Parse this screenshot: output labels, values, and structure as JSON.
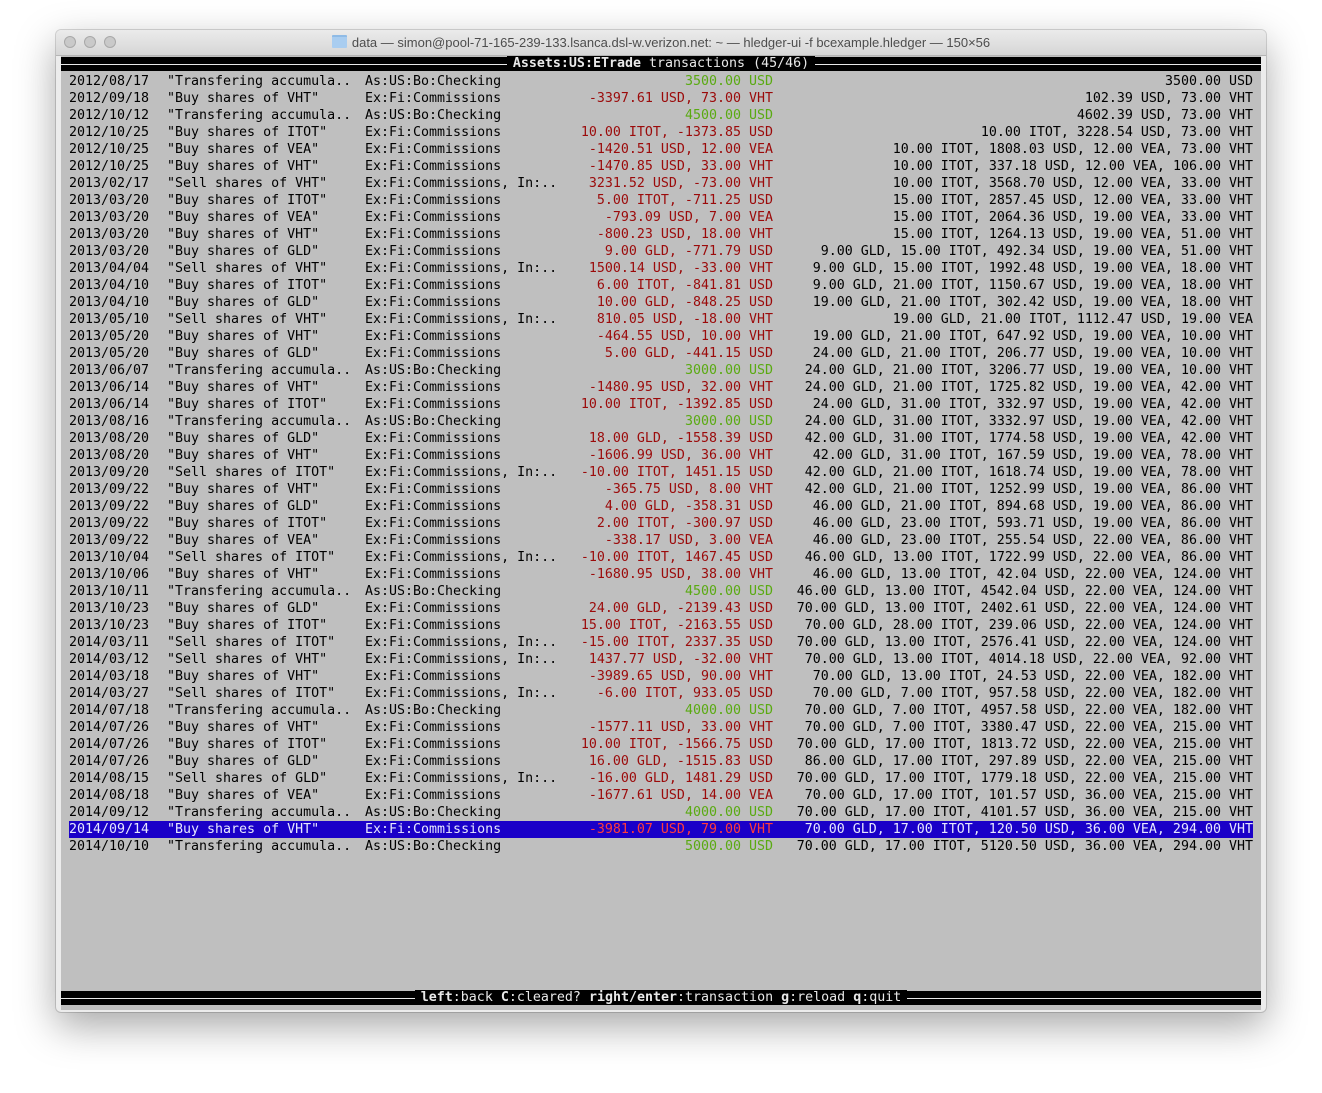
{
  "window": {
    "title": "data — simon@pool-71-165-239-133.lsanca.dsl-w.verizon.net: ~ — hledger-ui -f bcexample.hledger — 150×56"
  },
  "header": {
    "account": "Assets:US:ETrade",
    "suffix": " transactions (45/46)"
  },
  "colors": {
    "terminal_bg": "#bfbfbf",
    "negative_amount": "#9b0a0a",
    "positive_amount": "#5aaa12",
    "selection_bg": "#1a00c8"
  },
  "selected_index": 44,
  "rows": [
    {
      "date": "2012/08/17",
      "desc": "\"Transfering accumula..",
      "acct": "As:US:Bo:Checking",
      "amt": "3500.00 USD",
      "sign": "pos",
      "bal": "3500.00 USD"
    },
    {
      "date": "2012/09/18",
      "desc": "\"Buy shares of VHT\"",
      "acct": "Ex:Fi:Commissions",
      "amt": "-3397.61 USD, 73.00 VHT",
      "sign": "neg",
      "bal": "102.39 USD, 73.00 VHT"
    },
    {
      "date": "2012/10/12",
      "desc": "\"Transfering accumula..",
      "acct": "As:US:Bo:Checking",
      "amt": "4500.00 USD",
      "sign": "pos",
      "bal": "4602.39 USD, 73.00 VHT"
    },
    {
      "date": "2012/10/25",
      "desc": "\"Buy shares of ITOT\"",
      "acct": "Ex:Fi:Commissions",
      "amt": "10.00 ITOT, -1373.85 USD",
      "sign": "neg",
      "bal": "10.00 ITOT, 3228.54 USD, 73.00 VHT"
    },
    {
      "date": "2012/10/25",
      "desc": "\"Buy shares of VEA\"",
      "acct": "Ex:Fi:Commissions",
      "amt": "-1420.51 USD, 12.00 VEA",
      "sign": "neg",
      "bal": "10.00 ITOT, 1808.03 USD, 12.00 VEA, 73.00 VHT"
    },
    {
      "date": "2012/10/25",
      "desc": "\"Buy shares of VHT\"",
      "acct": "Ex:Fi:Commissions",
      "amt": "-1470.85 USD, 33.00 VHT",
      "sign": "neg",
      "bal": "10.00 ITOT, 337.18 USD, 12.00 VEA, 106.00 VHT"
    },
    {
      "date": "2013/02/17",
      "desc": "\"Sell shares of VHT\"",
      "acct": "Ex:Fi:Commissions, In:..",
      "amt": "3231.52 USD, -73.00 VHT",
      "sign": "neg",
      "bal": "10.00 ITOT, 3568.70 USD, 12.00 VEA, 33.00 VHT"
    },
    {
      "date": "2013/03/20",
      "desc": "\"Buy shares of ITOT\"",
      "acct": "Ex:Fi:Commissions",
      "amt": "5.00 ITOT, -711.25 USD",
      "sign": "neg",
      "bal": "15.00 ITOT, 2857.45 USD, 12.00 VEA, 33.00 VHT"
    },
    {
      "date": "2013/03/20",
      "desc": "\"Buy shares of VEA\"",
      "acct": "Ex:Fi:Commissions",
      "amt": "-793.09 USD, 7.00 VEA",
      "sign": "neg",
      "bal": "15.00 ITOT, 2064.36 USD, 19.00 VEA, 33.00 VHT"
    },
    {
      "date": "2013/03/20",
      "desc": "\"Buy shares of VHT\"",
      "acct": "Ex:Fi:Commissions",
      "amt": "-800.23 USD, 18.00 VHT",
      "sign": "neg",
      "bal": "15.00 ITOT, 1264.13 USD, 19.00 VEA, 51.00 VHT"
    },
    {
      "date": "2013/03/20",
      "desc": "\"Buy shares of GLD\"",
      "acct": "Ex:Fi:Commissions",
      "amt": "9.00 GLD, -771.79 USD",
      "sign": "neg",
      "bal": "9.00 GLD, 15.00 ITOT, 492.34 USD, 19.00 VEA, 51.00 VHT"
    },
    {
      "date": "2013/04/04",
      "desc": "\"Sell shares of VHT\"",
      "acct": "Ex:Fi:Commissions, In:..",
      "amt": "1500.14 USD, -33.00 VHT",
      "sign": "neg",
      "bal": "9.00 GLD, 15.00 ITOT, 1992.48 USD, 19.00 VEA, 18.00 VHT"
    },
    {
      "date": "2013/04/10",
      "desc": "\"Buy shares of ITOT\"",
      "acct": "Ex:Fi:Commissions",
      "amt": "6.00 ITOT, -841.81 USD",
      "sign": "neg",
      "bal": "9.00 GLD, 21.00 ITOT, 1150.67 USD, 19.00 VEA, 18.00 VHT"
    },
    {
      "date": "2013/04/10",
      "desc": "\"Buy shares of GLD\"",
      "acct": "Ex:Fi:Commissions",
      "amt": "10.00 GLD, -848.25 USD",
      "sign": "neg",
      "bal": "19.00 GLD, 21.00 ITOT, 302.42 USD, 19.00 VEA, 18.00 VHT"
    },
    {
      "date": "2013/05/10",
      "desc": "\"Sell shares of VHT\"",
      "acct": "Ex:Fi:Commissions, In:..",
      "amt": "810.05 USD, -18.00 VHT",
      "sign": "neg",
      "bal": "19.00 GLD, 21.00 ITOT, 1112.47 USD, 19.00 VEA"
    },
    {
      "date": "2013/05/20",
      "desc": "\"Buy shares of VHT\"",
      "acct": "Ex:Fi:Commissions",
      "amt": "-464.55 USD, 10.00 VHT",
      "sign": "neg",
      "bal": "19.00 GLD, 21.00 ITOT, 647.92 USD, 19.00 VEA, 10.00 VHT"
    },
    {
      "date": "2013/05/20",
      "desc": "\"Buy shares of GLD\"",
      "acct": "Ex:Fi:Commissions",
      "amt": "5.00 GLD, -441.15 USD",
      "sign": "neg",
      "bal": "24.00 GLD, 21.00 ITOT, 206.77 USD, 19.00 VEA, 10.00 VHT"
    },
    {
      "date": "2013/06/07",
      "desc": "\"Transfering accumula..",
      "acct": "As:US:Bo:Checking",
      "amt": "3000.00 USD",
      "sign": "pos",
      "bal": "24.00 GLD, 21.00 ITOT, 3206.77 USD, 19.00 VEA, 10.00 VHT"
    },
    {
      "date": "2013/06/14",
      "desc": "\"Buy shares of VHT\"",
      "acct": "Ex:Fi:Commissions",
      "amt": "-1480.95 USD, 32.00 VHT",
      "sign": "neg",
      "bal": "24.00 GLD, 21.00 ITOT, 1725.82 USD, 19.00 VEA, 42.00 VHT"
    },
    {
      "date": "2013/06/14",
      "desc": "\"Buy shares of ITOT\"",
      "acct": "Ex:Fi:Commissions",
      "amt": "10.00 ITOT, -1392.85 USD",
      "sign": "neg",
      "bal": "24.00 GLD, 31.00 ITOT, 332.97 USD, 19.00 VEA, 42.00 VHT"
    },
    {
      "date": "2013/08/16",
      "desc": "\"Transfering accumula..",
      "acct": "As:US:Bo:Checking",
      "amt": "3000.00 USD",
      "sign": "pos",
      "bal": "24.00 GLD, 31.00 ITOT, 3332.97 USD, 19.00 VEA, 42.00 VHT"
    },
    {
      "date": "2013/08/20",
      "desc": "\"Buy shares of GLD\"",
      "acct": "Ex:Fi:Commissions",
      "amt": "18.00 GLD, -1558.39 USD",
      "sign": "neg",
      "bal": "42.00 GLD, 31.00 ITOT, 1774.58 USD, 19.00 VEA, 42.00 VHT"
    },
    {
      "date": "2013/08/20",
      "desc": "\"Buy shares of VHT\"",
      "acct": "Ex:Fi:Commissions",
      "amt": "-1606.99 USD, 36.00 VHT",
      "sign": "neg",
      "bal": "42.00 GLD, 31.00 ITOT, 167.59 USD, 19.00 VEA, 78.00 VHT"
    },
    {
      "date": "2013/09/20",
      "desc": "\"Sell shares of ITOT\"",
      "acct": "Ex:Fi:Commissions, In:..",
      "amt": "-10.00 ITOT, 1451.15 USD",
      "sign": "neg",
      "bal": "42.00 GLD, 21.00 ITOT, 1618.74 USD, 19.00 VEA, 78.00 VHT"
    },
    {
      "date": "2013/09/22",
      "desc": "\"Buy shares of VHT\"",
      "acct": "Ex:Fi:Commissions",
      "amt": "-365.75 USD, 8.00 VHT",
      "sign": "neg",
      "bal": "42.00 GLD, 21.00 ITOT, 1252.99 USD, 19.00 VEA, 86.00 VHT"
    },
    {
      "date": "2013/09/22",
      "desc": "\"Buy shares of GLD\"",
      "acct": "Ex:Fi:Commissions",
      "amt": "4.00 GLD, -358.31 USD",
      "sign": "neg",
      "bal": "46.00 GLD, 21.00 ITOT, 894.68 USD, 19.00 VEA, 86.00 VHT"
    },
    {
      "date": "2013/09/22",
      "desc": "\"Buy shares of ITOT\"",
      "acct": "Ex:Fi:Commissions",
      "amt": "2.00 ITOT, -300.97 USD",
      "sign": "neg",
      "bal": "46.00 GLD, 23.00 ITOT, 593.71 USD, 19.00 VEA, 86.00 VHT"
    },
    {
      "date": "2013/09/22",
      "desc": "\"Buy shares of VEA\"",
      "acct": "Ex:Fi:Commissions",
      "amt": "-338.17 USD, 3.00 VEA",
      "sign": "neg",
      "bal": "46.00 GLD, 23.00 ITOT, 255.54 USD, 22.00 VEA, 86.00 VHT"
    },
    {
      "date": "2013/10/04",
      "desc": "\"Sell shares of ITOT\"",
      "acct": "Ex:Fi:Commissions, In:..",
      "amt": "-10.00 ITOT, 1467.45 USD",
      "sign": "neg",
      "bal": "46.00 GLD, 13.00 ITOT, 1722.99 USD, 22.00 VEA, 86.00 VHT"
    },
    {
      "date": "2013/10/06",
      "desc": "\"Buy shares of VHT\"",
      "acct": "Ex:Fi:Commissions",
      "amt": "-1680.95 USD, 38.00 VHT",
      "sign": "neg",
      "bal": "46.00 GLD, 13.00 ITOT, 42.04 USD, 22.00 VEA, 124.00 VHT"
    },
    {
      "date": "2013/10/11",
      "desc": "\"Transfering accumula..",
      "acct": "As:US:Bo:Checking",
      "amt": "4500.00 USD",
      "sign": "pos",
      "bal": "46.00 GLD, 13.00 ITOT, 4542.04 USD, 22.00 VEA, 124.00 VHT"
    },
    {
      "date": "2013/10/23",
      "desc": "\"Buy shares of GLD\"",
      "acct": "Ex:Fi:Commissions",
      "amt": "24.00 GLD, -2139.43 USD",
      "sign": "neg",
      "bal": "70.00 GLD, 13.00 ITOT, 2402.61 USD, 22.00 VEA, 124.00 VHT"
    },
    {
      "date": "2013/10/23",
      "desc": "\"Buy shares of ITOT\"",
      "acct": "Ex:Fi:Commissions",
      "amt": "15.00 ITOT, -2163.55 USD",
      "sign": "neg",
      "bal": "70.00 GLD, 28.00 ITOT, 239.06 USD, 22.00 VEA, 124.00 VHT"
    },
    {
      "date": "2014/03/11",
      "desc": "\"Sell shares of ITOT\"",
      "acct": "Ex:Fi:Commissions, In:..",
      "amt": "-15.00 ITOT, 2337.35 USD",
      "sign": "neg",
      "bal": "70.00 GLD, 13.00 ITOT, 2576.41 USD, 22.00 VEA, 124.00 VHT"
    },
    {
      "date": "2014/03/12",
      "desc": "\"Sell shares of VHT\"",
      "acct": "Ex:Fi:Commissions, In:..",
      "amt": "1437.77 USD, -32.00 VHT",
      "sign": "neg",
      "bal": "70.00 GLD, 13.00 ITOT, 4014.18 USD, 22.00 VEA, 92.00 VHT"
    },
    {
      "date": "2014/03/18",
      "desc": "\"Buy shares of VHT\"",
      "acct": "Ex:Fi:Commissions",
      "amt": "-3989.65 USD, 90.00 VHT",
      "sign": "neg",
      "bal": "70.00 GLD, 13.00 ITOT, 24.53 USD, 22.00 VEA, 182.00 VHT"
    },
    {
      "date": "2014/03/27",
      "desc": "\"Sell shares of ITOT\"",
      "acct": "Ex:Fi:Commissions, In:..",
      "amt": "-6.00 ITOT, 933.05 USD",
      "sign": "neg",
      "bal": "70.00 GLD, 7.00 ITOT, 957.58 USD, 22.00 VEA, 182.00 VHT"
    },
    {
      "date": "2014/07/18",
      "desc": "\"Transfering accumula..",
      "acct": "As:US:Bo:Checking",
      "amt": "4000.00 USD",
      "sign": "pos",
      "bal": "70.00 GLD, 7.00 ITOT, 4957.58 USD, 22.00 VEA, 182.00 VHT"
    },
    {
      "date": "2014/07/26",
      "desc": "\"Buy shares of VHT\"",
      "acct": "Ex:Fi:Commissions",
      "amt": "-1577.11 USD, 33.00 VHT",
      "sign": "neg",
      "bal": "70.00 GLD, 7.00 ITOT, 3380.47 USD, 22.00 VEA, 215.00 VHT"
    },
    {
      "date": "2014/07/26",
      "desc": "\"Buy shares of ITOT\"",
      "acct": "Ex:Fi:Commissions",
      "amt": "10.00 ITOT, -1566.75 USD",
      "sign": "neg",
      "bal": "70.00 GLD, 17.00 ITOT, 1813.72 USD, 22.00 VEA, 215.00 VHT"
    },
    {
      "date": "2014/07/26",
      "desc": "\"Buy shares of GLD\"",
      "acct": "Ex:Fi:Commissions",
      "amt": "16.00 GLD, -1515.83 USD",
      "sign": "neg",
      "bal": "86.00 GLD, 17.00 ITOT, 297.89 USD, 22.00 VEA, 215.00 VHT"
    },
    {
      "date": "2014/08/15",
      "desc": "\"Sell shares of GLD\"",
      "acct": "Ex:Fi:Commissions, In:..",
      "amt": "-16.00 GLD, 1481.29 USD",
      "sign": "neg",
      "bal": "70.00 GLD, 17.00 ITOT, 1779.18 USD, 22.00 VEA, 215.00 VHT"
    },
    {
      "date": "2014/08/18",
      "desc": "\"Buy shares of VEA\"",
      "acct": "Ex:Fi:Commissions",
      "amt": "-1677.61 USD, 14.00 VEA",
      "sign": "neg",
      "bal": "70.00 GLD, 17.00 ITOT, 101.57 USD, 36.00 VEA, 215.00 VHT"
    },
    {
      "date": "2014/09/12",
      "desc": "\"Transfering accumula..",
      "acct": "As:US:Bo:Checking",
      "amt": "4000.00 USD",
      "sign": "pos",
      "bal": "70.00 GLD, 17.00 ITOT, 4101.57 USD, 36.00 VEA, 215.00 VHT"
    },
    {
      "date": "2014/09/14",
      "desc": "\"Buy shares of VHT\"",
      "acct": "Ex:Fi:Commissions",
      "amt": "-3981.07 USD, 79.00 VHT",
      "sign": "neg",
      "bal": "70.00 GLD, 17.00 ITOT, 120.50 USD, 36.00 VEA, 294.00 VHT"
    },
    {
      "date": "2014/10/10",
      "desc": "\"Transfering accumula..",
      "acct": "As:US:Bo:Checking",
      "amt": "5000.00 USD",
      "sign": "pos",
      "bal": "70.00 GLD, 17.00 ITOT, 5120.50 USD, 36.00 VEA, 294.00 VHT"
    }
  ],
  "footer": {
    "keys": [
      {
        "key": "left",
        "action": "back"
      },
      {
        "key": "C",
        "action": "cleared?"
      },
      {
        "key": "right/enter",
        "action": "transaction"
      },
      {
        "key": "g",
        "action": "reload"
      },
      {
        "key": "q",
        "action": "quit"
      }
    ]
  }
}
